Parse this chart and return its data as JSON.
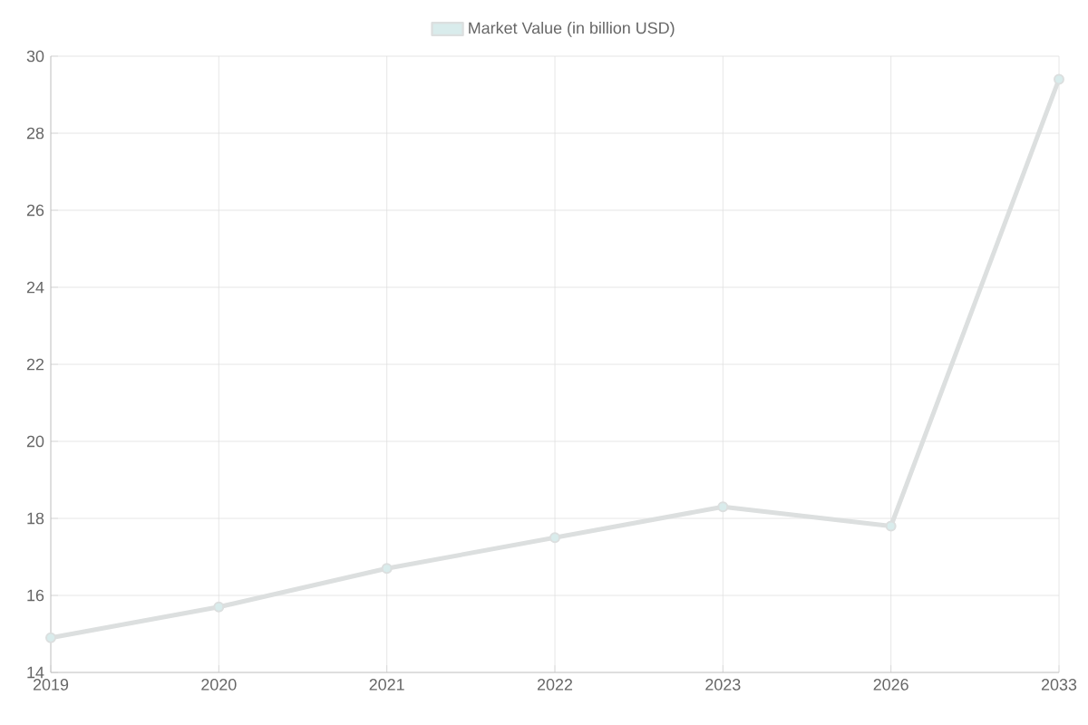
{
  "chart_data": {
    "type": "line",
    "categories": [
      "2019",
      "2020",
      "2021",
      "2022",
      "2023",
      "2026",
      "2033"
    ],
    "series": [
      {
        "name": "Market Value (in billion USD)",
        "color": "#dcdfdf",
        "values": [
          14.9,
          15.7,
          16.7,
          17.5,
          18.3,
          17.8,
          29.4
        ]
      }
    ],
    "ylim": [
      14,
      30
    ],
    "yticks": [
      14,
      16,
      18,
      20,
      22,
      24,
      26,
      28,
      30
    ],
    "grid": true,
    "legend": "top",
    "marker": "circle",
    "line_style": "solid"
  }
}
